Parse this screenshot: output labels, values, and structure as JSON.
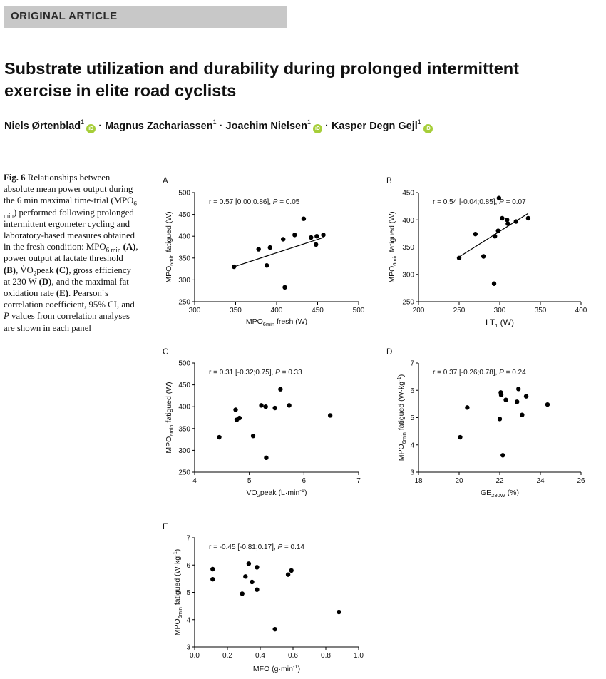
{
  "header": {
    "section_label": "ORIGINAL ARTICLE",
    "title": "Substrate utilization and durability during prolonged intermittent exercise in elite road cyclists"
  },
  "authors": [
    {
      "name": "Niels Ørtenblad",
      "affil": "1",
      "orcid": true
    },
    {
      "name": "Magnus Zachariassen",
      "affil": "1",
      "orcid": false
    },
    {
      "name": "Joachim Nielsen",
      "affil": "1",
      "orcid": true
    },
    {
      "name": "Kasper Degn Gejl",
      "affil": "1",
      "orcid": true
    }
  ],
  "caption": {
    "label": "Fig. 6",
    "p1": "Relationships between absolute mean power output during the 6 min maximal time-trial (MPO",
    "p1_sub": "6 min",
    "p2": ") performed following prolonged intermittent ergometer cycling and laboratory-based measures obtained in the fresh condition: MPO",
    "p2_sub": "6 min",
    "p3": "(A)",
    "p4": ", power output at lactate threshold",
    "p5": "(B)",
    "p6": ", V̇O",
    "p6_sub": "2",
    "p7": "peak",
    "p8": "(C)",
    "p9": ", gross efficiency at 230 W",
    "p10": "(D)",
    "p11": ", and the maximal fat oxidation rate",
    "p12": "(E)",
    "p13": ". Pearson´s correlation coefficient, 95% CI, and",
    "p14": "P",
    "p15": "values from correlation analyses are shown in each panel"
  },
  "chart_data": [
    {
      "panel": "A",
      "type": "scatter",
      "ylabel": "MPO6min fatigued (W)",
      "xlabel": "MPO6min fresh (W)",
      "xlim": [
        300,
        500
      ],
      "ylim": [
        250,
        500
      ],
      "xticks": [
        300,
        350,
        400,
        450,
        500
      ],
      "yticks": [
        250,
        300,
        350,
        400,
        450,
        500
      ],
      "annotation_prefix": "r = 0.57 [0.00;0.86], ",
      "annotation_p": "P",
      "annotation_suffix": " = 0.05",
      "points": [
        [
          348,
          330
        ],
        [
          378,
          370
        ],
        [
          388,
          333
        ],
        [
          392,
          374
        ],
        [
          408,
          393
        ],
        [
          410,
          283
        ],
        [
          422,
          403
        ],
        [
          433,
          440
        ],
        [
          442,
          397
        ],
        [
          448,
          381
        ],
        [
          449,
          400
        ],
        [
          457,
          403
        ]
      ],
      "fit": [
        [
          348,
          330
        ],
        [
          457,
          397
        ]
      ]
    },
    {
      "panel": "B",
      "type": "scatter",
      "ylabel": "MPO6min fatigued (W)",
      "xlabel": "LT1 (W)",
      "xlim": [
        200,
        400
      ],
      "ylim": [
        250,
        450
      ],
      "xticks": [
        200,
        250,
        300,
        350,
        400
      ],
      "yticks": [
        250,
        300,
        350,
        400,
        450
      ],
      "annotation_prefix": "r = 0.54 [-0.04;0.85], ",
      "annotation_p": "P",
      "annotation_suffix": " = 0.07",
      "points": [
        [
          250,
          330
        ],
        [
          270,
          374
        ],
        [
          280,
          333
        ],
        [
          293,
          283
        ],
        [
          294,
          370
        ],
        [
          298,
          380
        ],
        [
          299,
          440
        ],
        [
          303,
          403
        ],
        [
          309,
          400
        ],
        [
          310,
          393
        ],
        [
          320,
          397
        ],
        [
          335,
          403
        ]
      ],
      "fit": [
        [
          250,
          332
        ],
        [
          335,
          412
        ]
      ]
    },
    {
      "panel": "C",
      "type": "scatter",
      "ylabel": "MPO6min fatigued (W)",
      "xlabel": "VO2peak (L·min-1)",
      "xlim": [
        4,
        7
      ],
      "ylim": [
        250,
        500
      ],
      "xticks": [
        4,
        5,
        6,
        7
      ],
      "yticks": [
        250,
        300,
        350,
        400,
        450,
        500
      ],
      "annotation_prefix": "r = 0.31 [-0.32;0.75], ",
      "annotation_p": "P",
      "annotation_suffix": " = 0.33",
      "points": [
        [
          4.45,
          330
        ],
        [
          4.75,
          393
        ],
        [
          4.77,
          370
        ],
        [
          4.82,
          374
        ],
        [
          5.07,
          333
        ],
        [
          5.22,
          403
        ],
        [
          5.3,
          400
        ],
        [
          5.31,
          283
        ],
        [
          5.47,
          397
        ],
        [
          5.57,
          440
        ],
        [
          5.73,
          403
        ],
        [
          6.48,
          380
        ]
      ]
    },
    {
      "panel": "D",
      "type": "scatter",
      "ylabel": "MPO6min fatigued (W·kg-1)",
      "xlabel": "GE230W (%)",
      "xlim": [
        18,
        26
      ],
      "ylim": [
        3,
        7
      ],
      "xticks": [
        18,
        20,
        22,
        24,
        26
      ],
      "yticks": [
        3,
        4,
        5,
        6,
        7
      ],
      "annotation_prefix": "r = 0.37 [-0.26;0.78], ",
      "annotation_p": "P",
      "annotation_suffix": " = 0.24",
      "points": [
        [
          20.05,
          4.28
        ],
        [
          20.4,
          5.37
        ],
        [
          22.0,
          4.95
        ],
        [
          22.05,
          5.92
        ],
        [
          22.07,
          5.83
        ],
        [
          22.15,
          3.62
        ],
        [
          22.3,
          5.65
        ],
        [
          22.85,
          5.58
        ],
        [
          22.92,
          6.05
        ],
        [
          23.1,
          5.1
        ],
        [
          23.3,
          5.78
        ],
        [
          24.35,
          5.48
        ]
      ]
    },
    {
      "panel": "E",
      "type": "scatter",
      "ylabel": "MPO6min fatigued (W·kg-1)",
      "xlabel": "MFO (g·min-1)",
      "xlim": [
        0.0,
        1.0
      ],
      "ylim": [
        3,
        7
      ],
      "xticks": [
        "0.0",
        "0.2",
        "0.4",
        "0.6",
        "0.8",
        "1.0"
      ],
      "yticks": [
        3,
        4,
        5,
        6,
        7
      ],
      "annotation_prefix": "r = -0.45 [-0.81;0.17], ",
      "annotation_p": "P",
      "annotation_suffix": " = 0.14",
      "points": [
        [
          0.11,
          5.85
        ],
        [
          0.11,
          5.48
        ],
        [
          0.29,
          4.95
        ],
        [
          0.31,
          5.58
        ],
        [
          0.33,
          6.05
        ],
        [
          0.35,
          5.38
        ],
        [
          0.38,
          5.1
        ],
        [
          0.38,
          5.92
        ],
        [
          0.49,
          3.65
        ],
        [
          0.57,
          5.65
        ],
        [
          0.59,
          5.8
        ],
        [
          0.88,
          4.28
        ]
      ]
    }
  ]
}
